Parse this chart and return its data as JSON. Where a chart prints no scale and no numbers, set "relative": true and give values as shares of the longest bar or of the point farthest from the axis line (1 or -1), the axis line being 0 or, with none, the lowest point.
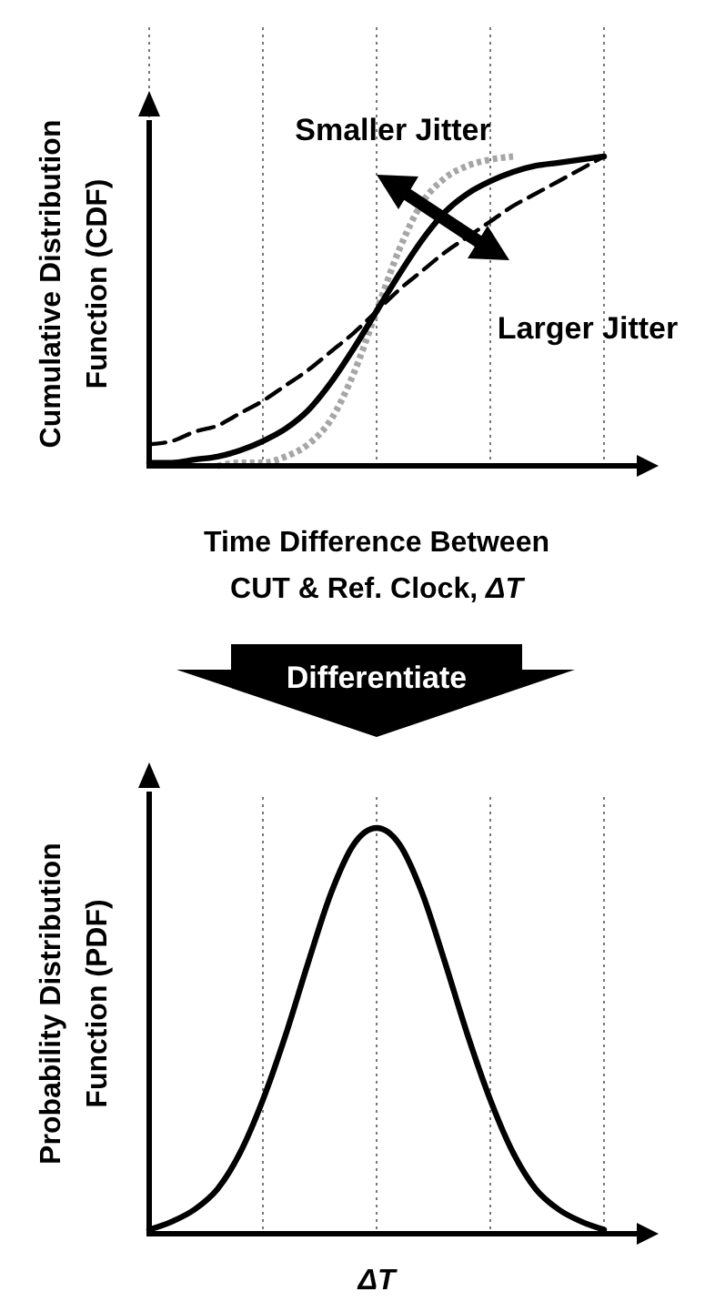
{
  "chart_data": [
    {
      "type": "line",
      "relative": true,
      "grid": "x",
      "xlabel": "Time Difference Between\nCUT & Ref. Clock, ΔT",
      "ylabel": "Cumulative Distribution\nFunction (CDF)",
      "categories": [
        null,
        null,
        null,
        null,
        null,
        null,
        null,
        null,
        null,
        null,
        null,
        null,
        null,
        null,
        null,
        null,
        null,
        null,
        null,
        null,
        null
      ],
      "series": [
        {
          "color": "#a6a6a6",
          "line_style": "dotted",
          "values": [
            null,
            null,
            null,
            0,
            0.01,
            0.01,
            0.03,
            0.07,
            0.15,
            0.3,
            0.5,
            0.7,
            0.85,
            0.93,
            0.97,
            0.99,
            1,
            null,
            null,
            null,
            null
          ]
        },
        {
          "color": "#000000",
          "line_style": "dashed",
          "values": [
            0.07,
            0.08,
            0.11,
            0.13,
            0.17,
            0.21,
            0.26,
            0.31,
            0.37,
            0.43,
            0.5,
            0.57,
            0.63,
            0.69,
            0.74,
            0.79,
            0.84,
            0.88,
            0.92,
            0.96,
            1
          ]
        },
        {
          "color": "#000000",
          "line_style": "solid",
          "values": [
            0.01,
            0.01,
            0.02,
            0.03,
            0.05,
            0.08,
            0.12,
            0.18,
            0.27,
            0.38,
            0.5,
            0.62,
            0.73,
            0.82,
            0.88,
            0.92,
            0.95,
            0.97,
            0.98,
            0.99,
            1
          ]
        }
      ],
      "annotations": [
        "Smaller Jitter",
        "Larger Jitter"
      ]
    },
    {
      "type": "line",
      "relative": true,
      "grid": "x",
      "xlabel": "ΔT",
      "ylabel": "Probability Distribution\nFunction (PDF)",
      "categories": [
        null,
        null,
        null,
        null,
        null,
        null,
        null,
        null,
        null,
        null,
        null,
        null,
        null,
        null,
        null,
        null,
        null,
        null,
        null,
        null,
        null
      ],
      "series": [
        {
          "color": "#000000",
          "line_style": "solid",
          "values": [
            0.01,
            0.03,
            0.06,
            0.11,
            0.2,
            0.33,
            0.49,
            0.67,
            0.84,
            0.96,
            1,
            0.96,
            0.84,
            0.67,
            0.49,
            0.33,
            0.2,
            0.11,
            0.06,
            0.03,
            0.01
          ]
        }
      ],
      "annotations": [
        "Differentiate"
      ]
    }
  ]
}
